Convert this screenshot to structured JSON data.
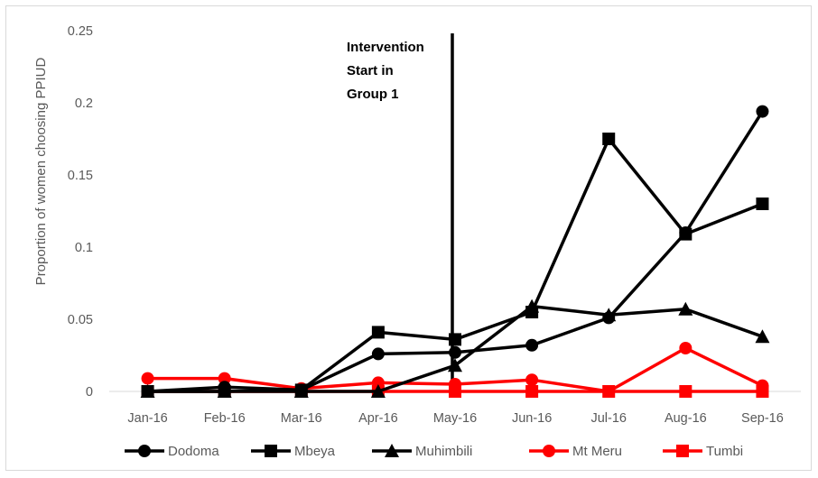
{
  "chart_data": {
    "type": "line",
    "title": "",
    "xlabel": "",
    "ylabel": "Proportion of women choosing PPIUD",
    "categories": [
      "Jan-16",
      "Feb-16",
      "Mar-16",
      "Apr-16",
      "May-16",
      "Jun-16",
      "Jul-16",
      "Aug-16",
      "Sep-16"
    ],
    "ylim": [
      0,
      0.25
    ],
    "yticks": [
      0,
      0.05,
      0.1,
      0.15,
      0.2,
      0.25
    ],
    "ytick_labels": [
      "0",
      "0.05",
      "0.1",
      "0.15",
      "0.2",
      "0.25"
    ],
    "grid": false,
    "legend_position": "bottom",
    "series": [
      {
        "name": "Dodoma",
        "color": "#000000",
        "marker": "circle",
        "values": [
          0,
          0.003,
          0.001,
          0.026,
          0.027,
          0.032,
          0.051,
          0.11,
          0.194
        ]
      },
      {
        "name": "Mbeya",
        "color": "#000000",
        "marker": "square",
        "values": [
          0,
          0,
          0.001,
          0.041,
          0.036,
          0.055,
          0.175,
          0.109,
          0.13
        ]
      },
      {
        "name": "Muhimbili",
        "color": "#000000",
        "marker": "triangle",
        "values": [
          0,
          0,
          0,
          0,
          0.018,
          0.059,
          0.053,
          0.057,
          0.038
        ]
      },
      {
        "name": "Mt Meru",
        "color": "#ff0000",
        "marker": "circle",
        "values": [
          0.009,
          0.009,
          0.002,
          0.006,
          0.005,
          0.008,
          0,
          0.03,
          0.004
        ]
      },
      {
        "name": "Tumbi",
        "color": "#ff0000",
        "marker": "square",
        "values": [
          0,
          0,
          0,
          0,
          0,
          0,
          0,
          0,
          0
        ]
      }
    ],
    "annotation": {
      "lines": [
        "Intervention",
        "Start in",
        "Group 1"
      ],
      "at_category": "May-16"
    }
  }
}
